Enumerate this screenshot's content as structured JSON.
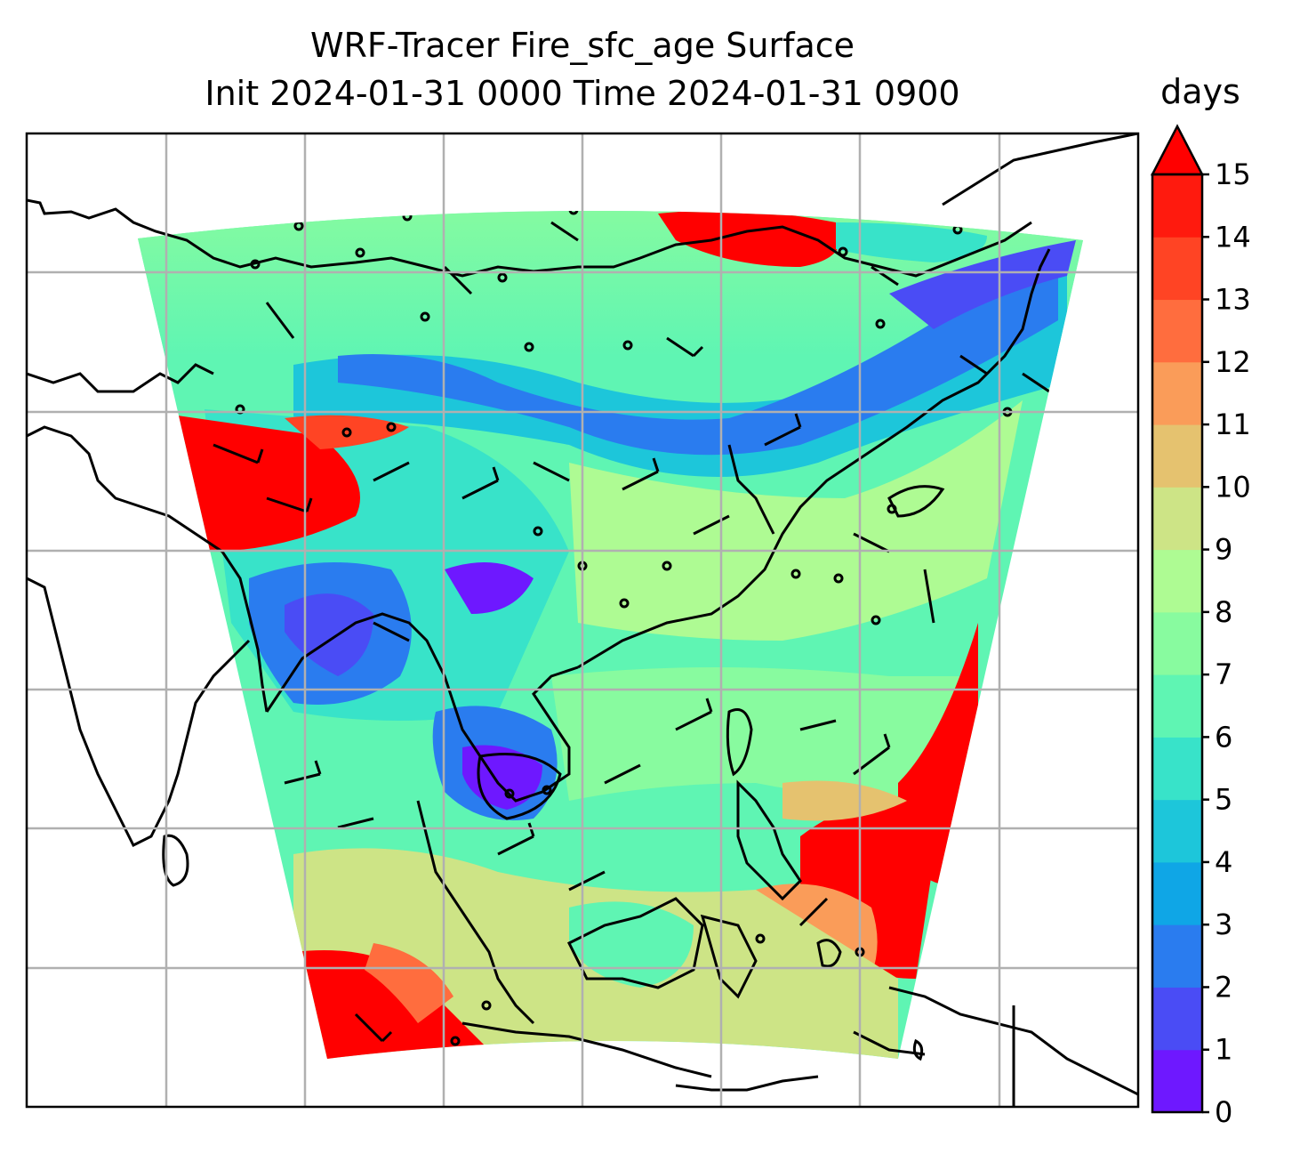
{
  "title": {
    "line1": "WRF-Tracer Fire_sfc_age Surface",
    "line2": "Init 2024-01-31 0000 Time 2024-01-31 0900"
  },
  "colorbar": {
    "unit": "days",
    "min": 0,
    "max": 15,
    "ticks": [
      "0",
      "1",
      "2",
      "3",
      "4",
      "5",
      "6",
      "7",
      "8",
      "9",
      "10",
      "11",
      "12",
      "13",
      "14",
      "15"
    ],
    "extend": "max",
    "colors": [
      "#6e18ff",
      "#4a4cf5",
      "#2a7cef",
      "#0fa6e6",
      "#1dc6da",
      "#38e3c9",
      "#5ff5b3",
      "#88fb9f",
      "#aefb93",
      "#cde486",
      "#e5c26f",
      "#fa9c59",
      "#ff6d3e",
      "#ff4424",
      "#ff1a0e",
      "#ff0000"
    ]
  },
  "map": {
    "grid": true,
    "region_colors": {
      "land": "#ffffff",
      "outline": "#000000",
      "grid": "#b0b0b0"
    }
  }
}
